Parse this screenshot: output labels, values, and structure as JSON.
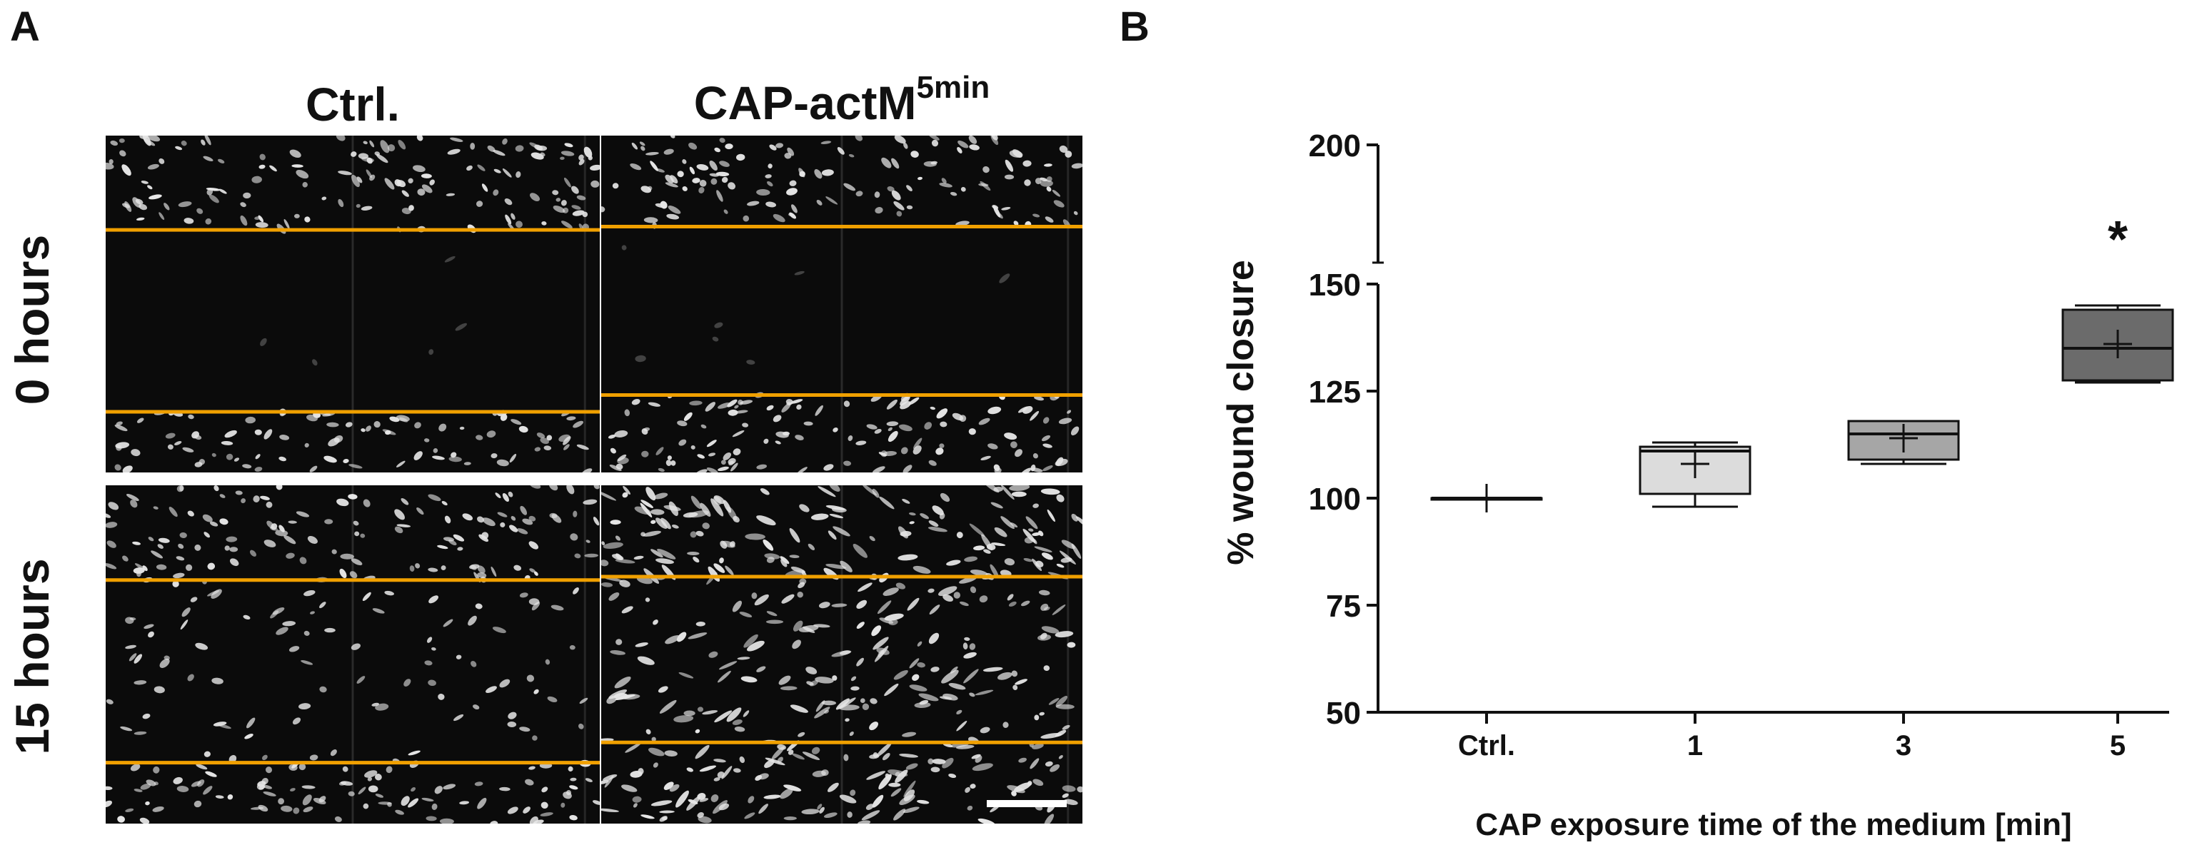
{
  "panel_a": {
    "letter": "A",
    "columns": {
      "ctrl": "Ctrl.",
      "cap_base": "CAP-actM",
      "cap_sup": "5min"
    },
    "rows": {
      "h0": "0 hours",
      "h15": "15 hours"
    },
    "colors": {
      "wound_edge": "#f0a000",
      "background": "#0b0b0b",
      "cells": "#e6e6e6"
    },
    "images": [
      {
        "column": "Ctrl.",
        "row": "0 hours",
        "edge_fractions": [
          0.28,
          0.82
        ]
      },
      {
        "column": "CAP-actM5min",
        "row": "0 hours",
        "edge_fractions": [
          0.27,
          0.77
        ]
      },
      {
        "column": "Ctrl.",
        "row": "15 hours",
        "edge_fractions": [
          0.28,
          0.82
        ]
      },
      {
        "column": "CAP-actM5min",
        "row": "15 hours",
        "edge_fractions": [
          0.27,
          0.76
        ]
      }
    ]
  },
  "panel_b": {
    "letter": "B"
  },
  "chart_data": {
    "type": "box",
    "title": "",
    "xlabel": "CAP exposure time of the medium [min]",
    "ylabel": "% wound closure",
    "categories": [
      "Ctrl.",
      "1",
      "3",
      "5"
    ],
    "ylim": [
      50,
      200
    ],
    "y_axis_break": [
      150,
      200
    ],
    "yticks": [
      50,
      75,
      100,
      125,
      150,
      200
    ],
    "boxes": [
      {
        "category": "Ctrl.",
        "min": 100,
        "q1": 100,
        "median": 100,
        "q3": 100,
        "max": 100,
        "mean": 100,
        "fill": "#ffffff"
      },
      {
        "category": "1",
        "min": 98,
        "q1": 101,
        "median": 111,
        "q3": 112,
        "max": 113,
        "mean": 108,
        "fill": "#dcdcdc"
      },
      {
        "category": "3",
        "min": 108,
        "q1": 109,
        "median": 115,
        "q3": 118,
        "max": 118,
        "mean": 114,
        "fill": "#a6a6a6"
      },
      {
        "category": "5",
        "min": 127,
        "q1": 127.5,
        "median": 135,
        "q3": 144,
        "max": 145,
        "mean": 136,
        "fill": "#6b6b6b"
      }
    ],
    "annotations": [
      {
        "category": "5",
        "text": "*"
      }
    ],
    "grid": false,
    "legend": "none"
  }
}
